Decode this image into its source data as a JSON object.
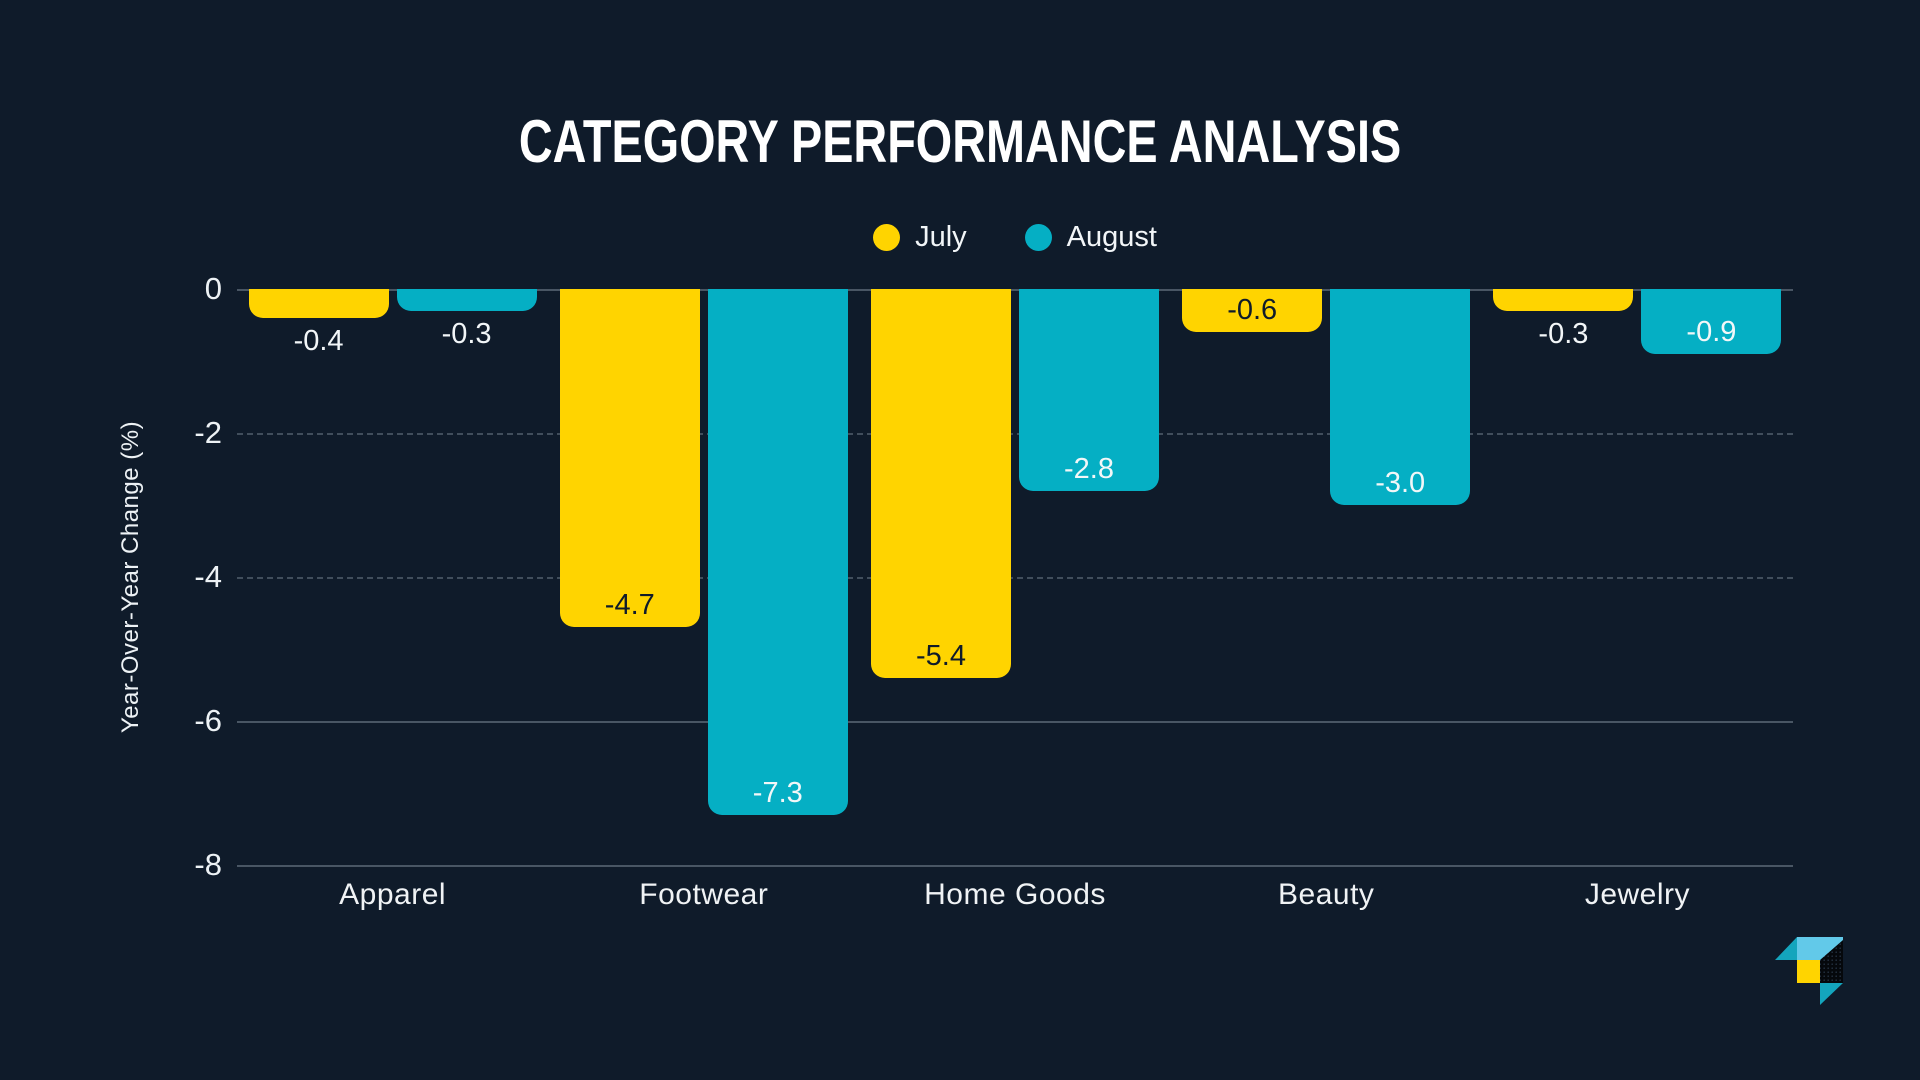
{
  "chart_data": {
    "type": "bar",
    "title": "CATEGORY PERFORMANCE ANALYSIS",
    "ylabel": "Year-Over-Year Change (%)",
    "categories": [
      "Apparel",
      "Footwear",
      "Home Goods",
      "Beauty",
      "Jewelry"
    ],
    "series": [
      {
        "name": "July",
        "color": "#FFD400",
        "values": [
          -0.4,
          -4.7,
          -5.4,
          -0.6,
          -0.3
        ],
        "labels": [
          "-0.4",
          "-4.7",
          "-5.4",
          "-0.6",
          "-0.3"
        ],
        "label_color_inside": "#0F1B2A"
      },
      {
        "name": "August",
        "color": "#05AFC4",
        "values": [
          -0.3,
          -7.3,
          -2.8,
          -3.0,
          -0.9
        ],
        "labels": [
          "-0.3",
          "-7.3",
          "-2.8",
          "-3.0",
          "-0.9"
        ],
        "label_color_inside": "#F2F7F8"
      }
    ],
    "ylim": [
      -8,
      0
    ],
    "yticks": [
      {
        "label": "0",
        "value": 0,
        "style": "solid"
      },
      {
        "label": "-2",
        "value": -2,
        "style": "dashed"
      },
      {
        "label": "-4",
        "value": -4,
        "style": "dashed"
      },
      {
        "label": "-6",
        "value": -6,
        "style": "solid"
      },
      {
        "label": "-8",
        "value": -8,
        "style": "solid"
      }
    ],
    "grid": "horizontal",
    "legend_position": "top-center"
  },
  "colors": {
    "background": "#0F1B2A",
    "bar_yellow": "#FFD400",
    "bar_teal": "#05AFC4",
    "logo_light_blue": "#62C9E9",
    "logo_teal": "#14A5BD",
    "gridline": "#44525F",
    "text": "#FFFFFF"
  }
}
